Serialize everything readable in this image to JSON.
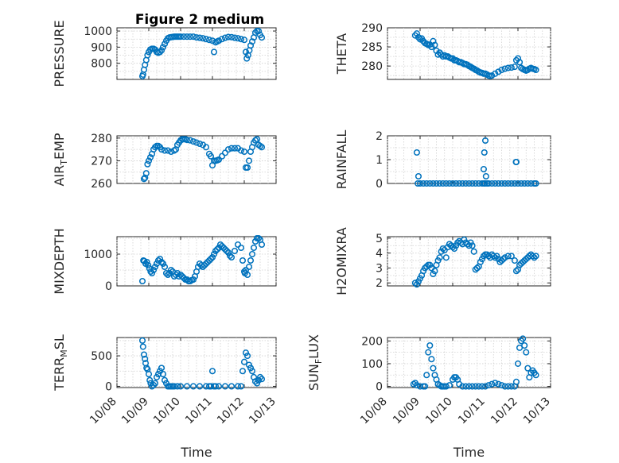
{
  "figure_title": "Figure 2 medium",
  "marker_color": "#0072BD",
  "time_ticks": [
    "10/08",
    "10/09",
    "10/10",
    "10/11",
    "10/12",
    "10/13"
  ],
  "x_axis_label": "Time",
  "chart_data": [
    {
      "type": "scatter",
      "ylabel": "PRESSURE",
      "xlabel": "",
      "title": "Figure 2 medium",
      "xlim": [
        0,
        5
      ],
      "ylim": [
        700,
        1020
      ],
      "yticks": [
        800,
        900,
        1000
      ],
      "ytick_labels": [
        "800",
        "900",
        "1000"
      ],
      "x": [
        0.8,
        0.82,
        0.85,
        0.88,
        0.92,
        0.96,
        1.0,
        1.05,
        1.1,
        1.15,
        1.2,
        1.25,
        1.3,
        1.35,
        1.4,
        1.45,
        1.5,
        1.55,
        1.6,
        1.65,
        1.7,
        1.75,
        1.8,
        1.85,
        1.9,
        1.95,
        2.0,
        2.1,
        2.2,
        2.3,
        2.4,
        2.5,
        2.6,
        2.7,
        2.8,
        2.9,
        3.0,
        3.05,
        3.1,
        3.15,
        3.2,
        3.3,
        3.4,
        3.5,
        3.6,
        3.7,
        3.8,
        3.9,
        4.0,
        4.05,
        4.08,
        4.12,
        4.16,
        4.2,
        4.25,
        4.3,
        4.35,
        4.4,
        4.45,
        4.5,
        4.55
      ],
      "y": [
        720,
        730,
        760,
        790,
        820,
        850,
        870,
        885,
        890,
        890,
        885,
        870,
        865,
        870,
        880,
        900,
        920,
        940,
        955,
        960,
        962,
        963,
        965,
        965,
        965,
        965,
        965,
        965,
        965,
        965,
        965,
        960,
        958,
        955,
        950,
        945,
        940,
        870,
        930,
        935,
        940,
        950,
        958,
        963,
        962,
        958,
        955,
        950,
        945,
        870,
        830,
        850,
        880,
        910,
        935,
        960,
        990,
        1000,
        1000,
        975,
        960
      ]
    },
    {
      "type": "scatter",
      "ylabel": "THETA",
      "xlabel": "",
      "xlim": [
        0,
        5
      ],
      "ylim": [
        276.5,
        290
      ],
      "yticks": [
        280,
        285,
        290
      ],
      "ytick_labels": [
        "280",
        "285",
        "290"
      ],
      "x": [
        0.85,
        0.9,
        0.95,
        1.0,
        1.05,
        1.1,
        1.15,
        1.2,
        1.25,
        1.3,
        1.35,
        1.4,
        1.45,
        1.5,
        1.55,
        1.6,
        1.65,
        1.7,
        1.75,
        1.8,
        1.85,
        1.9,
        1.95,
        2.0,
        2.05,
        2.1,
        2.15,
        2.2,
        2.25,
        2.3,
        2.35,
        2.4,
        2.45,
        2.5,
        2.55,
        2.6,
        2.65,
        2.7,
        2.75,
        2.8,
        2.85,
        2.9,
        2.95,
        3.0,
        3.05,
        3.1,
        3.15,
        3.2,
        3.3,
        3.4,
        3.5,
        3.6,
        3.7,
        3.8,
        3.9,
        3.95,
        4.0,
        4.05,
        4.1,
        4.15,
        4.2,
        4.25,
        4.3,
        4.35,
        4.4,
        4.45,
        4.5,
        4.55
      ],
      "y": [
        288,
        288.5,
        287.5,
        287,
        287.2,
        286.5,
        286,
        285.8,
        285.5,
        285.6,
        285,
        286.5,
        285.5,
        284,
        283,
        283.5,
        283,
        282.5,
        282.8,
        282.5,
        282.5,
        282.2,
        282,
        282,
        281.5,
        281.5,
        281.3,
        281,
        281,
        280.8,
        280.5,
        280.5,
        280.3,
        280,
        279.8,
        279.5,
        279.3,
        279,
        278.8,
        278.5,
        278.3,
        278.2,
        278,
        278,
        277.8,
        277.5,
        277.4,
        277.5,
        278,
        278.5,
        279,
        279.3,
        279.5,
        279.6,
        279.8,
        281.5,
        282,
        281,
        279.5,
        279.2,
        279,
        278.8,
        279,
        279.3,
        279.5,
        279.3,
        279.2,
        279
      ]
    },
    {
      "type": "scatter",
      "ylabel": "AIR_TEMP",
      "xlabel": "",
      "xlim": [
        0,
        5
      ],
      "ylim": [
        260,
        281
      ],
      "yticks": [
        260,
        270,
        280
      ],
      "ytick_labels": [
        "260",
        "270",
        "280"
      ],
      "x": [
        0.85,
        0.88,
        0.92,
        0.96,
        1.0,
        1.05,
        1.1,
        1.15,
        1.2,
        1.25,
        1.3,
        1.35,
        1.4,
        1.5,
        1.6,
        1.7,
        1.8,
        1.85,
        1.9,
        1.95,
        2.0,
        2.05,
        2.1,
        2.15,
        2.2,
        2.3,
        2.4,
        2.5,
        2.6,
        2.7,
        2.8,
        2.9,
        2.95,
        3.0,
        3.05,
        3.1,
        3.15,
        3.2,
        3.3,
        3.4,
        3.5,
        3.6,
        3.7,
        3.8,
        3.9,
        4.0,
        4.05,
        4.1,
        4.15,
        4.2,
        4.25,
        4.3,
        4.35,
        4.4,
        4.45,
        4.5,
        4.55
      ],
      "y": [
        262,
        262.5,
        264.5,
        268.5,
        270,
        271.5,
        273,
        275,
        276,
        276.5,
        276.5,
        276,
        275,
        274.5,
        274.5,
        274,
        274.5,
        275,
        277,
        278,
        279,
        279.5,
        279.5,
        279.5,
        279.2,
        279,
        278.5,
        278,
        277.5,
        277,
        276,
        273,
        272,
        268,
        270,
        270,
        270.2,
        270.5,
        272,
        273.5,
        275,
        275.5,
        275.5,
        275.5,
        274.5,
        274,
        267,
        267,
        270,
        274,
        276,
        278,
        279,
        279.5,
        277,
        276.5,
        276
      ]
    },
    {
      "type": "scatter",
      "ylabel": "RAINFALL",
      "xlabel": "",
      "xlim": [
        0,
        5
      ],
      "ylim": [
        0,
        2
      ],
      "yticks": [
        0,
        1,
        2
      ],
      "ytick_labels": [
        "0",
        "1",
        "2"
      ],
      "x": [
        0.9,
        0.95,
        1.0,
        1.1,
        1.2,
        1.3,
        1.4,
        1.5,
        1.6,
        1.7,
        1.8,
        1.9,
        2.0,
        2.1,
        2.2,
        2.3,
        2.4,
        2.5,
        2.6,
        2.7,
        2.8,
        2.9,
        2.95,
        2.97,
        3.0,
        3.02,
        3.05,
        3.1,
        3.2,
        3.3,
        3.4,
        3.5,
        3.6,
        3.7,
        3.8,
        3.9,
        3.95,
        4.0,
        4.1,
        4.2,
        4.3,
        4.4,
        4.5,
        4.55,
        0.93,
        2.96,
        3.94,
        2.99
      ],
      "y": [
        1.3,
        0.3,
        0,
        0,
        0,
        0,
        0,
        0,
        0,
        0,
        0,
        0,
        0,
        0,
        0,
        0,
        0,
        0,
        0,
        0,
        0,
        0,
        0.6,
        1.3,
        1.8,
        0.3,
        0,
        0,
        0,
        0,
        0,
        0,
        0,
        0,
        0,
        0,
        0.9,
        0,
        0,
        0,
        0,
        0,
        0,
        0,
        0,
        0,
        0.9,
        0
      ]
    },
    {
      "type": "scatter",
      "ylabel": "MIXDEPTH",
      "xlabel": "",
      "xlim": [
        0,
        5
      ],
      "ylim": [
        0,
        1550
      ],
      "yticks": [
        0,
        1000
      ],
      "ytick_labels": [
        "0",
        "1000"
      ],
      "x": [
        0.8,
        0.83,
        0.86,
        0.9,
        0.94,
        0.98,
        1.02,
        1.06,
        1.1,
        1.15,
        1.2,
        1.25,
        1.3,
        1.35,
        1.4,
        1.45,
        1.5,
        1.55,
        1.6,
        1.65,
        1.7,
        1.75,
        1.8,
        1.85,
        1.9,
        1.95,
        2.0,
        2.05,
        2.1,
        2.15,
        2.2,
        2.25,
        2.3,
        2.35,
        2.4,
        2.45,
        2.5,
        2.55,
        2.6,
        2.65,
        2.7,
        2.75,
        2.8,
        2.85,
        2.9,
        2.95,
        3.0,
        3.05,
        3.1,
        3.15,
        3.2,
        3.25,
        3.3,
        3.35,
        3.4,
        3.45,
        3.5,
        3.55,
        3.6,
        3.7,
        3.8,
        3.9,
        3.95,
        4.0,
        4.02,
        4.05,
        4.1,
        4.15,
        4.2,
        4.25,
        4.3,
        4.35,
        4.4,
        4.45,
        4.5,
        4.55
      ],
      "y": [
        150,
        800,
        780,
        700,
        750,
        650,
        550,
        450,
        400,
        500,
        600,
        700,
        800,
        850,
        750,
        700,
        600,
        400,
        350,
        400,
        500,
        450,
        300,
        350,
        400,
        300,
        350,
        300,
        250,
        200,
        200,
        150,
        150,
        180,
        200,
        300,
        450,
        600,
        700,
        650,
        600,
        650,
        700,
        750,
        800,
        850,
        900,
        1000,
        1100,
        1150,
        1200,
        1300,
        1250,
        1200,
        1150,
        1100,
        1050,
        950,
        900,
        1100,
        1300,
        1200,
        800,
        450,
        400,
        500,
        350,
        600,
        800,
        1000,
        1200,
        1400,
        1500,
        1500,
        1450,
        1300
      ]
    },
    {
      "type": "scatter",
      "ylabel": "H2OMIXRA",
      "xlabel": "",
      "xlim": [
        0,
        5
      ],
      "ylim": [
        1.8,
        5.1
      ],
      "yticks": [
        2,
        3,
        4,
        5
      ],
      "ytick_labels": [
        "2",
        "3",
        "4",
        "5"
      ],
      "x": [
        0.85,
        0.9,
        0.95,
        1.0,
        1.05,
        1.1,
        1.15,
        1.2,
        1.25,
        1.3,
        1.35,
        1.4,
        1.45,
        1.5,
        1.55,
        1.6,
        1.65,
        1.7,
        1.75,
        1.8,
        1.85,
        1.9,
        1.95,
        2.0,
        2.05,
        2.1,
        2.15,
        2.2,
        2.25,
        2.3,
        2.35,
        2.4,
        2.45,
        2.5,
        2.55,
        2.6,
        2.65,
        2.7,
        2.75,
        2.8,
        2.85,
        2.9,
        2.95,
        3.0,
        3.05,
        3.1,
        3.15,
        3.2,
        3.25,
        3.3,
        3.35,
        3.4,
        3.45,
        3.5,
        3.55,
        3.6,
        3.7,
        3.8,
        3.9,
        3.95,
        4.0,
        4.05,
        4.1,
        4.15,
        4.2,
        4.25,
        4.3,
        4.35,
        4.4,
        4.45,
        4.5,
        4.55
      ],
      "y": [
        2,
        1.9,
        2.1,
        2.3,
        2.5,
        2.8,
        3.0,
        3.1,
        3.2,
        3.2,
        3.0,
        2.6,
        2.8,
        3.2,
        3.5,
        3.7,
        4.1,
        4.3,
        4.2,
        3.7,
        4.4,
        4.6,
        4.5,
        4.4,
        4.3,
        4.5,
        4.7,
        4.8,
        4.7,
        4.6,
        4.9,
        4.7,
        4.6,
        4.5,
        4.7,
        4.5,
        4.1,
        2.9,
        3.0,
        3.1,
        3.4,
        3.6,
        3.8,
        3.9,
        3.9,
        3.8,
        3.7,
        3.9,
        3.8,
        3.7,
        3.8,
        3.6,
        3.4,
        3.5,
        3.6,
        3.7,
        3.8,
        3.8,
        3.5,
        2.8,
        2.9,
        3.2,
        3.3,
        3.4,
        3.5,
        3.6,
        3.7,
        3.8,
        3.9,
        3.8,
        3.7,
        3.8
      ]
    },
    {
      "type": "scatter",
      "ylabel": "TERR_MSL",
      "xlabel": "Time",
      "xlim": [
        0,
        5
      ],
      "ylim": [
        -20,
        800
      ],
      "yticks": [
        0,
        500
      ],
      "ytick_labels": [
        "0",
        "500"
      ],
      "x": [
        0.8,
        0.82,
        0.85,
        0.88,
        0.9,
        0.93,
        0.96,
        1.0,
        1.03,
        1.06,
        1.1,
        1.15,
        1.2,
        1.25,
        1.3,
        1.35,
        1.4,
        1.45,
        1.5,
        1.55,
        1.6,
        1.65,
        1.7,
        1.75,
        1.8,
        1.9,
        2.0,
        2.2,
        2.4,
        2.6,
        2.8,
        2.9,
        2.95,
        3.0,
        3.05,
        3.1,
        3.2,
        3.4,
        3.6,
        3.8,
        3.9,
        3.95,
        4.0,
        4.05,
        4.1,
        4.15,
        4.2,
        4.25,
        4.3,
        4.35,
        4.4,
        4.45,
        4.5,
        4.55
      ],
      "y": [
        750,
        650,
        520,
        450,
        380,
        300,
        280,
        200,
        100,
        50,
        0,
        20,
        50,
        150,
        200,
        250,
        300,
        200,
        100,
        50,
        0,
        0,
        0,
        0,
        0,
        0,
        0,
        0,
        0,
        0,
        0,
        0,
        0,
        250,
        0,
        0,
        0,
        0,
        0,
        0,
        0,
        250,
        400,
        550,
        500,
        350,
        300,
        250,
        150,
        80,
        50,
        100,
        150,
        120
      ]
    },
    {
      "type": "scatter",
      "ylabel": "SUN_FLUX",
      "xlabel": "Time",
      "xlim": [
        0,
        5
      ],
      "ylim": [
        -5,
        215
      ],
      "yticks": [
        0,
        100,
        200
      ],
      "ytick_labels": [
        "0",
        "100",
        "200"
      ],
      "x": [
        0.8,
        0.85,
        0.9,
        1.0,
        1.1,
        1.15,
        1.2,
        1.25,
        1.3,
        1.35,
        1.4,
        1.45,
        1.5,
        1.55,
        1.6,
        1.65,
        1.7,
        1.75,
        1.8,
        1.9,
        2.0,
        2.05,
        2.1,
        2.15,
        2.2,
        2.3,
        2.4,
        2.5,
        2.6,
        2.7,
        2.8,
        2.9,
        3.0,
        3.1,
        3.2,
        3.3,
        3.4,
        3.5,
        3.6,
        3.7,
        3.8,
        3.9,
        3.95,
        4.0,
        4.05,
        4.1,
        4.15,
        4.2,
        4.25,
        4.3,
        4.35,
        4.4,
        4.45,
        4.5,
        4.55
      ],
      "y": [
        10,
        15,
        5,
        0,
        0,
        0,
        50,
        150,
        180,
        120,
        80,
        50,
        30,
        10,
        5,
        0,
        0,
        0,
        0,
        5,
        30,
        40,
        40,
        30,
        10,
        0,
        0,
        0,
        0,
        0,
        0,
        0,
        0,
        5,
        10,
        15,
        10,
        5,
        0,
        0,
        0,
        0,
        20,
        100,
        170,
        200,
        210,
        180,
        150,
        80,
        40,
        60,
        70,
        60,
        50
      ]
    }
  ]
}
